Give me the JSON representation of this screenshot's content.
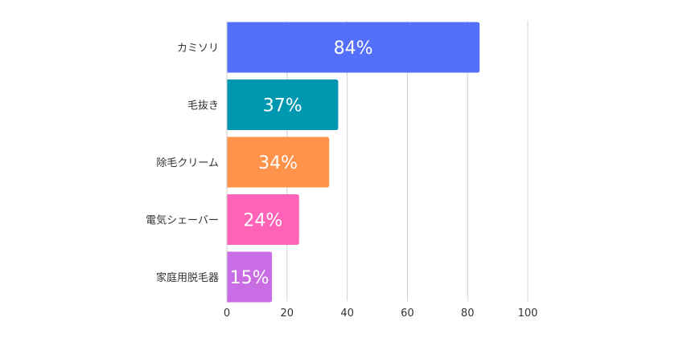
{
  "chart_data": {
    "type": "bar",
    "orientation": "horizontal",
    "categories": [
      "カミソリ",
      "毛抜き",
      "除毛クリーム",
      "電気シェーバー",
      "家庭用脱毛器"
    ],
    "values": [
      84,
      37,
      34,
      24,
      15
    ],
    "value_labels": [
      "84%",
      "37%",
      "34%",
      "24%",
      "15%"
    ],
    "bar_colors": [
      "#5470FA",
      "#0097B0",
      "#FF934C",
      "#FF63B8",
      "#C86DE3"
    ],
    "x_ticks": [
      0,
      20,
      40,
      60,
      80,
      100
    ],
    "xlim": [
      0,
      100
    ],
    "grid": true,
    "title": "",
    "xlabel": "",
    "ylabel": ""
  }
}
